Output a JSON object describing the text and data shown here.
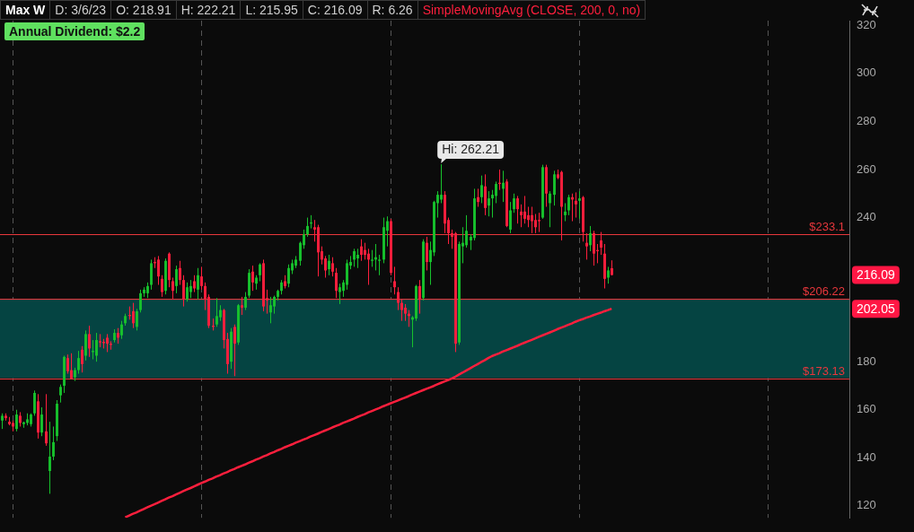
{
  "chart_data": {
    "type": "candlestick",
    "title": "Max W",
    "subtitle": "Annual Dividend: $2.2",
    "annotations": [
      "D: 3/6/23",
      "O: 218.91",
      "H: 222.21",
      "L: 215.95",
      "C: 216.09",
      "R: 6.26",
      "Hi: 262.21",
      "202.05"
    ],
    "value_labels": [
      null,
      null,
      null,
      null,
      null,
      null,
      null,
      null,
      null,
      null,
      null,
      null,
      null,
      null,
      null,
      null,
      null,
      null,
      null,
      null,
      null,
      null,
      null,
      null,
      null,
      null,
      null,
      null,
      null,
      null,
      null,
      null,
      null,
      null,
      null,
      null,
      null,
      null,
      null,
      null,
      null,
      null,
      null,
      null,
      null,
      null,
      null,
      null,
      null,
      null,
      null,
      null,
      null,
      null,
      null,
      null,
      null,
      null,
      null,
      null,
      null,
      null,
      null,
      null,
      null,
      null,
      null,
      null,
      null,
      null,
      null,
      null,
      null,
      null,
      null,
      null,
      null,
      null,
      null,
      null,
      null,
      null,
      null,
      null,
      null,
      null,
      null,
      null,
      null,
      null,
      null,
      null,
      null,
      null,
      null,
      null,
      null,
      null,
      null,
      null,
      null,
      null,
      null,
      null,
      null,
      null,
      null,
      null,
      null,
      null,
      null,
      null,
      null,
      null,
      null,
      null,
      null,
      null,
      null,
      null,
      null,
      null,
      null,
      null,
      null,
      null,
      null,
      null,
      null,
      null,
      null,
      null,
      null,
      null,
      null,
      null,
      null,
      null,
      null,
      null,
      null,
      null,
      null,
      null,
      null,
      null,
      null,
      null,
      null,
      null,
      null,
      null,
      null,
      null,
      null,
      null,
      null,
      null,
      null,
      null,
      null,
      null,
      null,
      null,
      null,
      null,
      null,
      null,
      "216.09"
    ],
    "ylim": [
      115,
      322
    ],
    "yticks": [
      120,
      140,
      160,
      180,
      240,
      260,
      280,
      300,
      320
    ],
    "bands": [
      {
        "axis": "y",
        "from": 173.13,
        "to": 206.22,
        "color": "#054442"
      }
    ],
    "ref_lines": [
      {
        "axis": "y",
        "value": 233.1,
        "label": "$233.1",
        "color": "#e8373c"
      },
      {
        "axis": "y",
        "value": 206.22,
        "label": "$206.22",
        "color": "#e8373c"
      },
      {
        "axis": "y",
        "value": 173.13,
        "label": "$173.13",
        "color": "#e8373c"
      }
    ],
    "categories": [
      null,
      null,
      null,
      null,
      null,
      null,
      null,
      null,
      null,
      null,
      null,
      null,
      null,
      null,
      null,
      null,
      null,
      null,
      null,
      null,
      null,
      null,
      null,
      null,
      null,
      null,
      null,
      null,
      null,
      null,
      null,
      null,
      null,
      null,
      null,
      null,
      null,
      null,
      null,
      null,
      null,
      null,
      null,
      null,
      null,
      null,
      null,
      null,
      null,
      null,
      null,
      null,
      null,
      null,
      null,
      null,
      null,
      null,
      null,
      null,
      null,
      null,
      null,
      null,
      null,
      null,
      null,
      null,
      null,
      null,
      null,
      null,
      null,
      null,
      null,
      null,
      null,
      null,
      null,
      null,
      null,
      null,
      null,
      null,
      null,
      null,
      null,
      null,
      null,
      null,
      null,
      null,
      null,
      null,
      null,
      null,
      null,
      null,
      null,
      null,
      null,
      null,
      null,
      null,
      null,
      null,
      null,
      null,
      null,
      null,
      null,
      null,
      null,
      null,
      null,
      null,
      null,
      null,
      null,
      null,
      null,
      null,
      null,
      null,
      null,
      null,
      null,
      null,
      null,
      null,
      null,
      null,
      null,
      null,
      null,
      null,
      null,
      null,
      null,
      null,
      null,
      null,
      null,
      null,
      null,
      null,
      null,
      null,
      null,
      null,
      null,
      null,
      null,
      null,
      null,
      null,
      null,
      null,
      null,
      null,
      null,
      null,
      null,
      null,
      null,
      null,
      null,
      null,
      null
    ],
    "ohlc": [
      [
        155.5,
        158.5,
        152,
        157.5
      ],
      [
        157.5,
        158.5,
        155.5,
        156.5
      ],
      [
        155,
        157,
        153.5,
        154
      ],
      [
        154.5,
        155.5,
        151,
        153
      ],
      [
        152,
        160,
        151,
        158
      ],
      [
        157.5,
        159,
        153,
        154.5
      ],
      [
        154,
        155,
        152.5,
        154.8
      ],
      [
        154.5,
        158.5,
        153.5,
        156
      ],
      [
        154,
        158.5,
        153,
        158
      ],
      [
        158.5,
        168,
        157.5,
        167
      ],
      [
        163.5,
        166.5,
        148,
        150.5
      ],
      [
        150.5,
        161,
        149,
        158
      ],
      [
        151,
        166.5,
        145,
        146
      ],
      [
        134.5,
        155,
        125,
        140.5
      ],
      [
        140.5,
        153,
        139,
        146.5
      ],
      [
        149,
        164,
        147,
        162.5
      ],
      [
        166,
        170.5,
        163,
        169.5
      ],
      [
        170,
        182.5,
        167,
        182
      ],
      [
        181.5,
        183,
        175,
        176
      ],
      [
        176.5,
        183.5,
        173,
        173
      ],
      [
        173.5,
        177.5,
        172,
        176.5
      ],
      [
        176.5,
        184.5,
        175,
        181.5
      ],
      [
        185,
        186.5,
        175.5,
        179
      ],
      [
        182.5,
        193,
        180.5,
        191.5
      ],
      [
        191.5,
        195,
        182,
        185.5
      ],
      [
        184,
        189,
        181,
        184.5
      ],
      [
        182.5,
        192,
        180,
        189
      ],
      [
        188.5,
        191.5,
        186,
        188
      ],
      [
        188.3,
        189.5,
        185.5,
        187.7
      ],
      [
        190,
        191.5,
        184,
        187.5
      ],
      [
        187.5,
        188.5,
        185,
        187
      ],
      [
        189,
        193.5,
        188,
        192
      ],
      [
        192,
        194,
        187.5,
        190
      ],
      [
        191,
        197,
        189.5,
        195.5
      ],
      [
        196,
        200,
        195,
        199
      ],
      [
        199.5,
        203,
        197.5,
        199
      ],
      [
        201,
        204.5,
        194,
        196
      ],
      [
        194.5,
        202,
        193,
        201
      ],
      [
        201.5,
        210,
        200.5,
        208.5
      ],
      [
        208.5,
        211,
        207,
        210
      ],
      [
        208.5,
        213,
        206.5,
        211.5
      ],
      [
        212,
        222.5,
        210,
        221
      ],
      [
        221.5,
        223.5,
        219,
        221
      ],
      [
        222.5,
        224,
        212,
        215.5
      ],
      [
        214.5,
        216,
        207,
        209
      ],
      [
        209.5,
        223,
        208,
        222
      ],
      [
        225,
        225.5,
        211,
        214
      ],
      [
        213.5,
        215,
        206,
        209.5
      ],
      [
        211.5,
        220,
        208.5,
        218.5
      ],
      [
        219,
        222,
        212,
        214
      ],
      [
        214,
        216,
        203,
        206
      ],
      [
        206,
        213,
        205,
        211
      ],
      [
        209,
        214,
        206.5,
        211.5
      ],
      [
        213.5,
        216,
        209,
        210.5
      ],
      [
        210,
        219,
        206,
        216
      ],
      [
        215.5,
        219.5,
        210,
        211.5
      ],
      [
        211.5,
        213,
        201.5,
        206
      ],
      [
        207,
        208,
        194,
        195
      ],
      [
        195,
        198,
        193,
        194.5
      ],
      [
        195.5,
        206.5,
        194.5,
        199
      ],
      [
        198.5,
        203.5,
        197,
        201.5
      ],
      [
        201.5,
        202,
        185.5,
        189
      ],
      [
        189.5,
        192,
        175,
        179
      ],
      [
        180,
        194,
        177,
        192.5
      ],
      [
        194.5,
        195.5,
        174,
        187.5
      ],
      [
        188,
        204,
        187,
        203.5
      ],
      [
        203.5,
        207,
        199.5,
        202.5
      ],
      [
        202.5,
        209,
        201.5,
        207
      ],
      [
        207.5,
        218.5,
        206.5,
        217
      ],
      [
        217.5,
        220,
        209.5,
        213
      ],
      [
        212.5,
        216,
        210,
        215
      ],
      [
        216,
        221,
        213.5,
        220.5
      ],
      [
        221,
        222.5,
        201,
        203
      ],
      [
        206.5,
        210,
        200,
        205.5
      ],
      [
        200.5,
        207,
        196,
        203.5
      ],
      [
        203,
        207.5,
        200,
        207
      ],
      [
        207,
        210,
        205.5,
        209.5
      ],
      [
        209.5,
        214,
        208,
        213
      ],
      [
        213.5,
        216,
        210.5,
        211.5
      ],
      [
        212.5,
        220.5,
        211,
        219
      ],
      [
        218,
        222.5,
        216.5,
        221
      ],
      [
        220,
        224,
        219,
        222.5
      ],
      [
        222,
        230,
        220,
        229.5
      ],
      [
        228.5,
        235,
        227,
        233
      ],
      [
        233,
        240,
        232,
        236.5
      ],
      [
        237.5,
        241,
        235.5,
        238
      ],
      [
        236,
        239,
        230,
        235
      ],
      [
        236,
        237,
        215.5,
        225.5
      ],
      [
        226,
        228,
        220.5,
        222.5
      ],
      [
        223,
        224,
        215,
        218
      ],
      [
        218.5,
        224.5,
        216,
        222
      ],
      [
        221,
        223.5,
        215.5,
        217.5
      ],
      [
        217,
        219,
        206.5,
        209.5
      ],
      [
        209,
        212.5,
        204,
        211
      ],
      [
        209.5,
        214,
        207,
        213
      ],
      [
        212,
        222.5,
        210,
        221
      ],
      [
        220,
        224,
        218.5,
        221.5
      ],
      [
        222.5,
        227,
        219.5,
        226
      ],
      [
        223,
        227,
        219,
        224.5
      ],
      [
        228,
        231,
        222,
        224.5
      ],
      [
        226.5,
        229.5,
        222.5,
        224.5
      ],
      [
        225,
        227,
        212,
        222.5
      ],
      [
        222,
        226.5,
        219.5,
        222.5
      ],
      [
        222.5,
        229,
        218,
        223.5
      ],
      [
        222,
        224.5,
        216,
        222.5
      ],
      [
        222.5,
        240,
        221,
        236
      ],
      [
        234.5,
        240.5,
        228,
        238.5
      ],
      [
        238.5,
        239.5,
        216,
        217
      ],
      [
        213.5,
        219.5,
        208,
        211
      ],
      [
        209,
        211,
        201.5,
        204.5
      ],
      [
        204.5,
        206,
        197,
        201.5
      ],
      [
        202.5,
        204,
        197,
        200
      ],
      [
        200,
        201.5,
        194.5,
        199
      ],
      [
        197.5,
        199,
        186,
        198.5
      ],
      [
        198,
        212,
        197,
        211.5
      ],
      [
        211.5,
        214,
        200,
        206
      ],
      [
        206.5,
        231,
        205.5,
        230
      ],
      [
        229.5,
        232,
        218,
        221.5
      ],
      [
        221.5,
        230,
        212,
        226.5
      ],
      [
        225.5,
        247,
        224,
        246.5
      ],
      [
        246,
        251,
        240,
        249.5
      ],
      [
        247.5,
        262.21,
        246,
        249.5
      ],
      [
        249.5,
        251,
        233.5,
        237.5
      ],
      [
        239,
        240,
        229,
        233.5
      ],
      [
        233.5,
        235,
        227,
        232
      ],
      [
        233.5,
        234,
        184,
        187.5
      ],
      [
        188,
        230,
        187,
        229
      ],
      [
        228,
        236,
        221,
        229.5
      ],
      [
        228.5,
        241,
        227.5,
        234.5
      ],
      [
        230.5,
        233,
        226.5,
        232
      ],
      [
        231.5,
        252,
        230.5,
        248
      ],
      [
        248.5,
        252,
        244.5,
        246.5
      ],
      [
        248.5,
        257.5,
        246,
        253.5
      ],
      [
        253,
        258,
        241,
        244
      ],
      [
        245,
        251,
        240.5,
        248
      ],
      [
        248,
        251.5,
        240,
        249.5
      ],
      [
        249,
        255,
        246,
        254
      ],
      [
        254.5,
        260,
        251.5,
        254
      ],
      [
        252,
        259.5,
        246.5,
        254.5
      ],
      [
        255,
        256,
        236,
        236.5
      ],
      [
        235,
        246.5,
        233.5,
        243
      ],
      [
        243.5,
        250,
        242,
        248
      ],
      [
        248,
        249,
        237.5,
        243.5
      ],
      [
        242.5,
        245.5,
        236,
        241
      ],
      [
        242.5,
        249,
        237.5,
        239.5
      ],
      [
        241,
        244.5,
        236,
        239
      ],
      [
        241,
        244.5,
        233.5,
        238.5
      ],
      [
        239,
        241.5,
        233.5,
        236
      ],
      [
        239,
        242,
        234,
        238.5
      ],
      [
        240,
        262,
        239.5,
        261
      ],
      [
        261,
        262,
        244.5,
        250
      ],
      [
        246,
        251,
        236,
        250
      ],
      [
        249.5,
        259.5,
        245,
        258
      ],
      [
        258,
        260,
        256,
        256.5
      ],
      [
        259,
        259.5,
        230.5,
        244.5
      ],
      [
        241,
        246,
        238.5,
        242.5
      ],
      [
        243,
        249.5,
        241,
        248.5
      ],
      [
        248.5,
        250,
        238.5,
        247.5
      ],
      [
        247,
        250.5,
        240,
        245.5
      ],
      [
        247,
        251,
        239.5,
        248
      ],
      [
        248.5,
        249,
        230,
        234
      ],
      [
        229.5,
        233.5,
        222.5,
        228
      ],
      [
        228.5,
        236.5,
        226,
        233.5
      ],
      [
        233.5,
        234.5,
        220,
        225
      ],
      [
        226.5,
        229,
        221,
        226
      ],
      [
        230.5,
        234,
        224.5,
        227.5
      ],
      [
        225,
        229,
        210.5,
        214.5
      ],
      [
        215,
        219.5,
        212.5,
        218
      ],
      [
        218.91,
        222.21,
        215.95,
        216.09
      ]
    ],
    "colors": [
      "#17c22d",
      "#ff1f3d",
      "#ff1f3d",
      "#ff1f3d",
      "#17c22d",
      "#ff1f3d",
      "#17c22d",
      "#17c22d",
      "#17c22d",
      "#17c22d",
      "#ff1f3d",
      "#17c22d",
      "#ff1f3d",
      "#17c22d",
      "#17c22d",
      "#17c22d",
      "#17c22d",
      "#17c22d",
      "#ff1f3d",
      "#ff1f3d",
      "#17c22d",
      "#17c22d",
      "#ff1f3d",
      "#17c22d",
      "#ff1f3d",
      "#17c22d",
      "#17c22d",
      "#ff1f3d",
      "#ff1f3d",
      "#ff1f3d",
      "#ff1f3d",
      "#17c22d",
      "#ff1f3d",
      "#17c22d",
      "#17c22d",
      "#ff1f3d",
      "#ff1f3d",
      "#17c22d",
      "#17c22d",
      "#17c22d",
      "#17c22d",
      "#17c22d",
      "#ff1f3d",
      "#ff1f3d",
      "#ff1f3d",
      "#17c22d",
      "#ff1f3d",
      "#ff1f3d",
      "#17c22d",
      "#ff1f3d",
      "#ff1f3d",
      "#17c22d",
      "#17c22d",
      "#ff1f3d",
      "#17c22d",
      "#ff1f3d",
      "#ff1f3d",
      "#ff1f3d",
      "#ff1f3d",
      "#17c22d",
      "#17c22d",
      "#ff1f3d",
      "#ff1f3d",
      "#17c22d",
      "#ff1f3d",
      "#17c22d",
      "#ff1f3d",
      "#17c22d",
      "#17c22d",
      "#ff1f3d",
      "#17c22d",
      "#17c22d",
      "#ff1f3d",
      "#ff1f3d",
      "#17c22d",
      "#17c22d",
      "#17c22d",
      "#17c22d",
      "#ff1f3d",
      "#17c22d",
      "#17c22d",
      "#17c22d",
      "#17c22d",
      "#17c22d",
      "#17c22d",
      "#17c22d",
      "#ff1f3d",
      "#ff1f3d",
      "#ff1f3d",
      "#ff1f3d",
      "#17c22d",
      "#ff1f3d",
      "#ff1f3d",
      "#17c22d",
      "#17c22d",
      "#17c22d",
      "#17c22d",
      "#17c22d",
      "#17c22d",
      "#ff1f3d",
      "#ff1f3d",
      "#ff1f3d",
      "#17c22d",
      "#17c22d",
      "#17c22d",
      "#17c22d",
      "#17c22d",
      "#ff1f3d",
      "#ff1f3d",
      "#ff1f3d",
      "#ff1f3d",
      "#ff1f3d",
      "#ff1f3d",
      "#17c22d",
      "#17c22d",
      "#ff1f3d",
      "#17c22d",
      "#ff1f3d",
      "#17c22d",
      "#17c22d",
      "#17c22d",
      "#17c22d",
      "#ff1f3d",
      "#ff1f3d",
      "#ff1f3d",
      "#ff1f3d",
      "#17c22d",
      "#17c22d",
      "#17c22d",
      "#17c22d",
      "#17c22d",
      "#ff1f3d",
      "#17c22d",
      "#ff1f3d",
      "#17c22d",
      "#17c22d",
      "#17c22d",
      "#ff1f3d",
      "#17c22d",
      "#ff1f3d",
      "#17c22d",
      "#17c22d",
      "#ff1f3d",
      "#ff1f3d",
      "#ff1f3d",
      "#ff1f3d",
      "#ff1f3d",
      "#ff1f3d",
      "#ff1f3d",
      "#17c22d",
      "#ff1f3d",
      "#17c22d",
      "#17c22d",
      "#ff1f3d",
      "#ff1f3d",
      "#17c22d",
      "#17c22d",
      "#ff1f3d",
      "#ff1f3d",
      "#17c22d",
      "#ff1f3d",
      "#ff1f3d",
      "#17c22d",
      "#ff1f3d",
      "#ff1f3d",
      "#ff1f3d",
      "#ff1f3d",
      "#17c22d",
      "#ff1f3d"
    ],
    "series": [
      {
        "type": "line",
        "name": "SimpleMovingAvg (CLOSE, 200, 0, no)",
        "color": "#ff1f3d",
        "values": [
          null,
          null,
          null,
          null,
          null,
          null,
          null,
          null,
          null,
          null,
          null,
          null,
          null,
          null,
          null,
          null,
          null,
          null,
          null,
          null,
          null,
          null,
          null,
          null,
          null,
          null,
          null,
          null,
          null,
          null,
          null,
          null,
          null,
          null,
          115.2,
          115.9,
          116.6,
          117.2,
          117.9,
          118.6,
          119.3,
          120.0,
          120.6,
          121.3,
          122.0,
          122.7,
          123.4,
          124.0,
          124.7,
          125.4,
          126.1,
          126.8,
          127.4,
          128.1,
          128.8,
          129.5,
          130.1,
          130.8,
          131.4,
          132.1,
          132.7,
          133.4,
          134.0,
          134.7,
          135.3,
          136.0,
          136.6,
          137.2,
          137.9,
          138.5,
          139.2,
          139.8,
          140.5,
          141.1,
          141.8,
          142.4,
          143.1,
          143.7,
          144.4,
          145.0,
          145.6,
          146.3,
          146.9,
          147.5,
          148.1,
          148.8,
          149.4,
          150.0,
          150.7,
          151.3,
          151.9,
          152.6,
          153.2,
          153.8,
          154.5,
          155.1,
          155.7,
          156.3,
          157.0,
          157.6,
          158.2,
          158.9,
          159.5,
          160.1,
          160.7,
          161.4,
          162.0,
          162.6,
          163.2,
          163.8,
          164.4,
          165.0,
          165.6,
          166.3,
          166.9,
          167.5,
          168.1,
          168.7,
          169.3,
          169.9,
          170.6,
          171.2,
          171.8,
          172.4,
          173.0,
          173.8,
          174.7,
          175.5,
          176.4,
          177.2,
          178.1,
          178.9,
          179.8,
          180.6,
          181.5,
          182.3,
          182.9,
          183.5,
          184.2,
          184.8,
          185.4,
          186.0,
          186.6,
          187.3,
          187.9,
          188.5,
          189.1,
          189.7,
          190.4,
          191.0,
          191.6,
          192.2,
          192.8,
          193.5,
          194.1,
          194.7,
          195.3,
          195.9,
          196.6,
          197.2,
          197.7,
          198.3,
          198.8,
          199.4,
          199.9,
          200.4,
          201.0,
          201.5,
          202.05
        ]
      }
    ]
  }
}
